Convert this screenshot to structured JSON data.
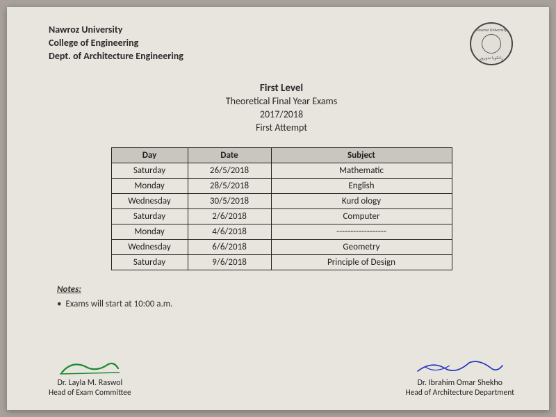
{
  "header": {
    "line1": "Nawroz University",
    "line2": "College of Engineering",
    "line3": "Dept. of Architecture Engineering"
  },
  "seal": {
    "top_text": "Nawroz University",
    "bottom_text": "زانكويا نه‌وروز"
  },
  "title": {
    "level": "First Level",
    "desc": "Theoretical Final Year Exams",
    "year": "2017/2018",
    "attempt": "First Attempt"
  },
  "table": {
    "headers": {
      "day": "Day",
      "date": "Date",
      "subject": "Subject"
    },
    "rows": [
      {
        "day": "Saturday",
        "date": "26/5/2018",
        "subject": "Mathematic"
      },
      {
        "day": "Monday",
        "date": "28/5/2018",
        "subject": "English"
      },
      {
        "day": "Wednesday",
        "date": "30/5/2018",
        "subject": "Kurd ology"
      },
      {
        "day": "Saturday",
        "date": "2/6/2018",
        "subject": "Computer"
      },
      {
        "day": "Monday",
        "date": "4/6/2018",
        "subject": "------------------"
      },
      {
        "day": "Wednesday",
        "date": "6/6/2018",
        "subject": "Geometry"
      },
      {
        "day": "Saturday",
        "date": "9/6/2018",
        "subject": "Principle of Design"
      }
    ]
  },
  "notes": {
    "title": "Notes:",
    "items": [
      "Exams will start at 10:00 a.m."
    ]
  },
  "signatures": {
    "left": {
      "name": "Dr. Layla M. Raswol",
      "role": "Head of Exam Committee",
      "color": "#168a2e"
    },
    "right": {
      "name": "Dr.  Ibrahim Omar Shekho",
      "role": "Head of Architecture Department",
      "color": "#1a2fbf"
    }
  },
  "colors": {
    "header_bg": "#c9c5bf",
    "border": "#222222",
    "text": "#2a2a2a",
    "paper": "#e8e4de"
  }
}
